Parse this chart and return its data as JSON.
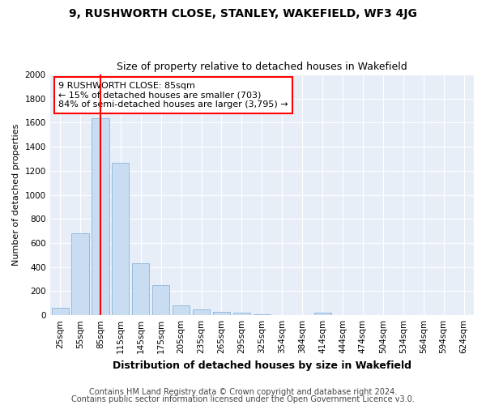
{
  "title1": "9, RUSHWORTH CLOSE, STANLEY, WAKEFIELD, WF3 4JG",
  "title2": "Size of property relative to detached houses in Wakefield",
  "xlabel": "Distribution of detached houses by size in Wakefield",
  "ylabel": "Number of detached properties",
  "categories": [
    "25sqm",
    "55sqm",
    "85sqm",
    "115sqm",
    "145sqm",
    "175sqm",
    "205sqm",
    "235sqm",
    "265sqm",
    "295sqm",
    "325sqm",
    "354sqm",
    "384sqm",
    "414sqm",
    "444sqm",
    "474sqm",
    "504sqm",
    "534sqm",
    "564sqm",
    "594sqm",
    "624sqm"
  ],
  "values": [
    65,
    680,
    1640,
    1270,
    430,
    250,
    80,
    45,
    25,
    20,
    10,
    0,
    0,
    20,
    0,
    0,
    0,
    0,
    0,
    0,
    0
  ],
  "bar_color": "#c9ddf2",
  "bar_edge_color": "#8ab4d9",
  "highlight_index": 2,
  "annotation_line1": "9 RUSHWORTH CLOSE: 85sqm",
  "annotation_line2": "← 15% of detached houses are smaller (703)",
  "annotation_line3": "84% of semi-detached houses are larger (3,795) →",
  "annotation_box_color": "white",
  "annotation_box_edge": "red",
  "ylim": [
    0,
    2000
  ],
  "yticks": [
    0,
    200,
    400,
    600,
    800,
    1000,
    1200,
    1400,
    1600,
    1800,
    2000
  ],
  "footer1": "Contains HM Land Registry data © Crown copyright and database right 2024.",
  "footer2": "Contains public sector information licensed under the Open Government Licence v3.0.",
  "fig_bg_color": "#ffffff",
  "plot_bg_color": "#e8eef8",
  "grid_color": "#ffffff",
  "title1_fontsize": 10,
  "title2_fontsize": 9,
  "xlabel_fontsize": 9,
  "ylabel_fontsize": 8,
  "tick_fontsize": 7.5,
  "annotation_fontsize": 8,
  "footer_fontsize": 7
}
